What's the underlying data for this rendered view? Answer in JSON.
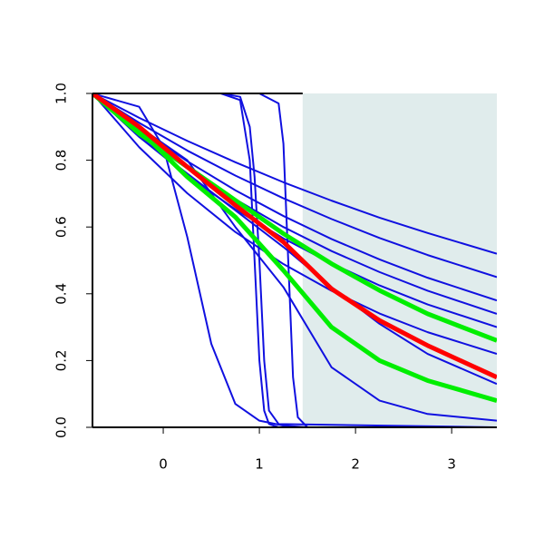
{
  "chart_data": {
    "type": "line",
    "xlim": [
      -0.736,
      3.47
    ],
    "ylim": [
      0,
      1
    ],
    "xticks": [
      0,
      1,
      2,
      3
    ],
    "yticks": [
      {
        "value": 0,
        "label": "0.0"
      },
      0.2,
      0.4,
      0.6,
      0.8,
      {
        "value": 1,
        "label": "1.0"
      }
    ],
    "shaded_region": [
      1.45,
      3.47
    ],
    "shade_color": "#e0ecec",
    "series": [
      {
        "color": "#1010e0",
        "x": [
          -0.736,
          -0.25,
          0.25,
          0.75,
          1.25,
          1.75,
          2.25,
          2.75,
          3.47
        ],
        "values": [
          1,
          0.927,
          0.858,
          0.794,
          0.734,
          0.679,
          0.628,
          0.582,
          0.52
        ]
      },
      {
        "color": "#1010e0",
        "x": [
          -0.736,
          -0.25,
          0.25,
          0.75,
          1.25,
          1.75,
          2.25,
          2.75,
          3.47
        ],
        "values": [
          1,
          0.912,
          0.829,
          0.754,
          0.686,
          0.624,
          0.567,
          0.516,
          0.45
        ]
      },
      {
        "color": "#1010e0",
        "x": [
          -0.736,
          -0.25,
          0.25,
          0.75,
          1.25,
          1.75,
          2.25,
          2.75,
          3.47
        ],
        "values": [
          1,
          0.894,
          0.797,
          0.71,
          0.633,
          0.564,
          0.503,
          0.448,
          0.38
        ]
      },
      {
        "color": "#1010e0",
        "x": [
          -0.736,
          -0.25,
          0.25,
          0.75,
          1.25,
          1.75,
          2.25,
          2.75,
          3.47
        ],
        "values": [
          1,
          0.883,
          0.776,
          0.683,
          0.6,
          0.528,
          0.465,
          0.409,
          0.34
        ]
      },
      {
        "color": "#1010e0",
        "x": [
          -0.736,
          -0.25,
          0.25,
          0.75,
          1.25,
          1.75,
          2.25,
          2.75,
          3.47
        ],
        "values": [
          1,
          0.87,
          0.754,
          0.653,
          0.566,
          0.491,
          0.425,
          0.368,
          0.3
        ]
      },
      {
        "color": "#1010e0",
        "x": [
          -0.736,
          -0.25,
          0.25,
          0.75,
          1.25,
          1.75,
          2.25,
          2.75,
          3.47
        ],
        "values": [
          1,
          0.839,
          0.701,
          0.585,
          0.489,
          0.409,
          0.341,
          0.285,
          0.22
        ]
      },
      {
        "color": "#1010e0",
        "x": [
          -0.736,
          -0.25,
          0.25,
          0.75,
          1.25,
          1.75,
          2.25,
          2.75,
          3.47
        ],
        "values": [
          1,
          0.87,
          0.76,
          0.65,
          0.54,
          0.42,
          0.31,
          0.22,
          0.13
        ]
      },
      {
        "color": "#1010e0",
        "x": [
          -0.736,
          -0.25,
          0.25,
          0.75,
          1.25,
          1.75,
          2.25,
          2.75,
          3.47
        ],
        "values": [
          1,
          0.9,
          0.8,
          0.6,
          0.42,
          0.18,
          0.08,
          0.04,
          0.02
        ]
      },
      {
        "color": "#1010e0",
        "x": [
          -0.736,
          -0.25,
          0,
          0.25,
          0.5,
          0.75,
          1,
          1.25,
          1.5,
          3.47
        ],
        "values": [
          1,
          0.96,
          0.84,
          0.57,
          0.25,
          0.07,
          0.02,
          0.005,
          0,
          0
        ]
      },
      {
        "color": "#1010e0",
        "x": [
          -0.736,
          0.6,
          0.8,
          0.9,
          0.95,
          1,
          1.05,
          1.1,
          1.2,
          3.47
        ],
        "values": [
          1,
          1,
          0.98,
          0.8,
          0.5,
          0.2,
          0.05,
          0.01,
          0,
          0
        ]
      },
      {
        "color": "#1010e0",
        "x": [
          -0.736,
          0.6,
          0.8,
          0.9,
          0.95,
          1,
          1.05,
          1.1,
          1.2,
          3.47
        ],
        "values": [
          1,
          1,
          0.99,
          0.9,
          0.75,
          0.5,
          0.2,
          0.05,
          0.01,
          0
        ]
      },
      {
        "color": "#1010e0",
        "x": [
          -0.736,
          1,
          1.2,
          1.25,
          1.3,
          1.35,
          1.4,
          1.5,
          3.47
        ],
        "values": [
          1,
          1,
          0.97,
          0.85,
          0.5,
          0.15,
          0.03,
          0,
          0
        ]
      },
      {
        "color": "#00ee00",
        "x": [
          -0.736,
          -0.25,
          0.25,
          0.75,
          1.25,
          1.75,
          2.25,
          2.75,
          3.47
        ],
        "values": [
          1,
          0.88,
          0.78,
          0.68,
          0.58,
          0.49,
          0.41,
          0.34,
          0.26
        ]
      },
      {
        "color": "#00ee00",
        "x": [
          -0.736,
          -0.25,
          0.25,
          0.75,
          1.25,
          1.75,
          2.25,
          2.75,
          3.47
        ],
        "values": [
          1,
          0.89,
          0.75,
          0.63,
          0.47,
          0.3,
          0.2,
          0.14,
          0.08
        ]
      },
      {
        "color": "#ff0000",
        "x": [
          -0.736,
          -0.25,
          0.25,
          0.75,
          1.25,
          1.75,
          2.25,
          2.75,
          3.47
        ],
        "values": [
          1,
          0.9,
          0.78,
          0.665,
          0.555,
          0.415,
          0.32,
          0.245,
          0.15
        ]
      }
    ]
  }
}
